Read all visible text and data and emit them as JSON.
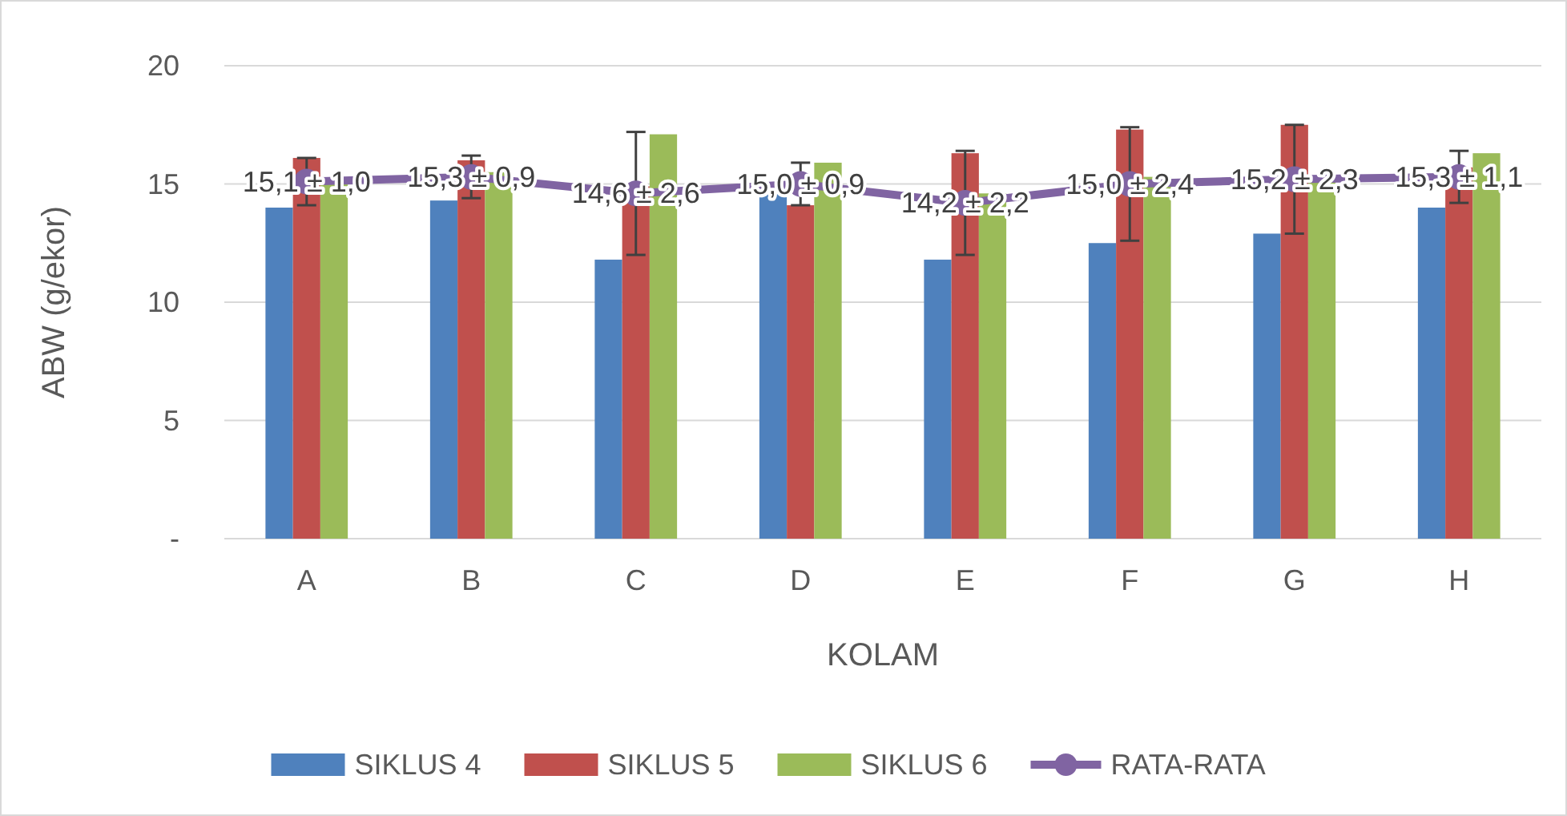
{
  "chart_data": {
    "type": "bar",
    "xlabel": "KOLAM",
    "ylabel": "ABW (g/ekor)",
    "categories": [
      "A",
      "B",
      "C",
      "D",
      "E",
      "F",
      "G",
      "H"
    ],
    "series": [
      {
        "name": "SIKLUS 4",
        "color": "#4f81bd",
        "values": [
          14.0,
          14.3,
          11.8,
          14.8,
          11.8,
          12.5,
          12.9,
          14.0
        ]
      },
      {
        "name": "SIKLUS 5",
        "color": "#c0504d",
        "values": [
          16.1,
          16.0,
          14.9,
          14.1,
          16.3,
          17.3,
          17.5,
          15.7
        ]
      },
      {
        "name": "SIKLUS 6",
        "color": "#9bbb59",
        "values": [
          15.2,
          15.5,
          17.1,
          15.9,
          14.6,
          15.3,
          15.2,
          16.3
        ]
      },
      {
        "name": "RATA-RATA",
        "type": "line",
        "color": "#8064a2",
        "marker": "circle",
        "values": [
          15.1,
          15.3,
          14.6,
          15.0,
          14.2,
          15.0,
          15.2,
          15.3
        ],
        "errors": [
          1.0,
          0.9,
          2.6,
          0.9,
          2.2,
          2.4,
          2.3,
          1.1
        ],
        "value_labels": [
          "15,1 ± 1,0",
          "15,3 ± 0,9",
          "14,6 ± 2,6",
          "15,0 ± 0,9",
          "14,2 ± 2,2",
          "15,0 ± 2,4",
          "15,2 ± 2,3",
          "15,3 ± 1,1"
        ]
      }
    ],
    "ylim": [
      0,
      20
    ],
    "yticks": [
      {
        "value": 0,
        "label": "-"
      },
      5,
      10,
      15,
      20
    ],
    "grid": "y",
    "legend": "bottom"
  }
}
